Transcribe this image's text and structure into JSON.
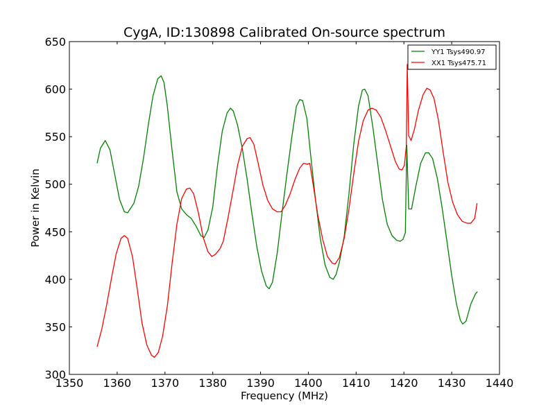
{
  "chart_data": {
    "type": "line",
    "title": "CygA, ID:130898 Calibrated On-source spectrum",
    "xlabel": "Frequency (MHz)",
    "ylabel": "Power in Kelvin",
    "xlim": [
      1350,
      1440
    ],
    "ylim": [
      300,
      650
    ],
    "xticks": [
      1350,
      1360,
      1370,
      1380,
      1390,
      1400,
      1410,
      1420,
      1430,
      1440
    ],
    "yticks": [
      300,
      350,
      400,
      450,
      500,
      550,
      600,
      650
    ],
    "grid": false,
    "legend_position": "top-right",
    "series": [
      {
        "name": "YY1 Tsys490.97",
        "color": "#008000",
        "points": [
          [
            1355.8,
            522
          ],
          [
            1356.5,
            538
          ],
          [
            1357.5,
            546
          ],
          [
            1358.5,
            536
          ],
          [
            1359.5,
            510
          ],
          [
            1360.5,
            484
          ],
          [
            1361.5,
            471
          ],
          [
            1362.2,
            470
          ],
          [
            1363.5,
            480
          ],
          [
            1364.5,
            498
          ],
          [
            1365.5,
            527
          ],
          [
            1366.5,
            562
          ],
          [
            1367.5,
            593
          ],
          [
            1368.5,
            611
          ],
          [
            1369.2,
            614
          ],
          [
            1369.8,
            607
          ],
          [
            1370.5,
            582
          ],
          [
            1371.5,
            535
          ],
          [
            1372.5,
            492
          ],
          [
            1373.5,
            474
          ],
          [
            1374.5,
            468
          ],
          [
            1375.5,
            464
          ],
          [
            1376.5,
            456
          ],
          [
            1377.5,
            446
          ],
          [
            1378.2,
            444
          ],
          [
            1379.0,
            452
          ],
          [
            1380.0,
            476
          ],
          [
            1381.0,
            520
          ],
          [
            1382.0,
            556
          ],
          [
            1383.0,
            575
          ],
          [
            1383.7,
            580
          ],
          [
            1384.3,
            577
          ],
          [
            1385.2,
            562
          ],
          [
            1386.2,
            537
          ],
          [
            1387.2,
            505
          ],
          [
            1388.2,
            469
          ],
          [
            1389.2,
            435
          ],
          [
            1390.2,
            409
          ],
          [
            1391.2,
            393
          ],
          [
            1391.8,
            390
          ],
          [
            1392.5,
            397
          ],
          [
            1393.5,
            428
          ],
          [
            1394.5,
            470
          ],
          [
            1395.5,
            510
          ],
          [
            1396.5,
            548
          ],
          [
            1397.5,
            582
          ],
          [
            1398.2,
            589
          ],
          [
            1398.8,
            588
          ],
          [
            1399.7,
            569
          ],
          [
            1400.5,
            530
          ],
          [
            1401.5,
            484
          ],
          [
            1402.5,
            443
          ],
          [
            1403.5,
            415
          ],
          [
            1404.5,
            402
          ],
          [
            1405.2,
            400
          ],
          [
            1405.8,
            405
          ],
          [
            1406.5,
            418
          ],
          [
            1407.5,
            445
          ],
          [
            1408.5,
            490
          ],
          [
            1409.5,
            542
          ],
          [
            1410.5,
            582
          ],
          [
            1411.3,
            599
          ],
          [
            1411.8,
            600
          ],
          [
            1412.5,
            593
          ],
          [
            1413.5,
            560
          ],
          [
            1414.5,
            522
          ],
          [
            1415.5,
            484
          ],
          [
            1416.5,
            458
          ],
          [
            1417.5,
            446
          ],
          [
            1418.5,
            441
          ],
          [
            1419.2,
            440
          ],
          [
            1419.8,
            442
          ],
          [
            1420.3,
            449
          ],
          [
            1420.6,
            541
          ],
          [
            1421.0,
            474
          ],
          [
            1421.6,
            474
          ],
          [
            1422.5,
            498
          ],
          [
            1423.5,
            522
          ],
          [
            1424.5,
            533
          ],
          [
            1425.2,
            533
          ],
          [
            1426.0,
            527
          ],
          [
            1427.0,
            506
          ],
          [
            1428.0,
            475
          ],
          [
            1429.0,
            440
          ],
          [
            1430.0,
            404
          ],
          [
            1431.0,
            374
          ],
          [
            1431.8,
            357
          ],
          [
            1432.3,
            353
          ],
          [
            1433.0,
            356
          ],
          [
            1434.0,
            374
          ],
          [
            1435.0,
            385
          ],
          [
            1435.4,
            387
          ]
        ]
      },
      {
        "name": "XX1 Tsys475.71",
        "color": "#ff0000",
        "points": [
          [
            1355.8,
            329
          ],
          [
            1356.8,
            348
          ],
          [
            1357.8,
            373
          ],
          [
            1358.8,
            401
          ],
          [
            1359.8,
            427
          ],
          [
            1360.8,
            443
          ],
          [
            1361.5,
            446
          ],
          [
            1362.2,
            443
          ],
          [
            1363.2,
            424
          ],
          [
            1364.2,
            390
          ],
          [
            1365.2,
            354
          ],
          [
            1366.2,
            331
          ],
          [
            1367.2,
            320
          ],
          [
            1367.8,
            318
          ],
          [
            1368.6,
            323
          ],
          [
            1369.5,
            340
          ],
          [
            1370.5,
            372
          ],
          [
            1371.5,
            417
          ],
          [
            1372.5,
            458
          ],
          [
            1373.5,
            485
          ],
          [
            1374.5,
            495
          ],
          [
            1375.2,
            496
          ],
          [
            1376.0,
            490
          ],
          [
            1377.0,
            470
          ],
          [
            1378.0,
            444
          ],
          [
            1379.0,
            429
          ],
          [
            1379.8,
            424
          ],
          [
            1380.5,
            426
          ],
          [
            1381.5,
            432
          ],
          [
            1382.2,
            440
          ],
          [
            1383.2,
            465
          ],
          [
            1384.2,
            492
          ],
          [
            1385.2,
            520
          ],
          [
            1386.2,
            540
          ],
          [
            1387.2,
            548
          ],
          [
            1387.8,
            549
          ],
          [
            1388.6,
            542
          ],
          [
            1389.5,
            522
          ],
          [
            1390.5,
            499
          ],
          [
            1391.5,
            483
          ],
          [
            1392.5,
            474
          ],
          [
            1393.5,
            471
          ],
          [
            1394.3,
            471
          ],
          [
            1395.2,
            478
          ],
          [
            1396.2,
            490
          ],
          [
            1397.2,
            505
          ],
          [
            1398.2,
            517
          ],
          [
            1399.0,
            522
          ],
          [
            1399.8,
            521
          ],
          [
            1400.3,
            522
          ],
          [
            1401.0,
            500
          ],
          [
            1402.0,
            467
          ],
          [
            1403.0,
            442
          ],
          [
            1404.0,
            424
          ],
          [
            1405.0,
            417
          ],
          [
            1405.6,
            416
          ],
          [
            1406.5,
            423
          ],
          [
            1407.5,
            443
          ],
          [
            1408.5,
            474
          ],
          [
            1409.5,
            511
          ],
          [
            1410.5,
            545
          ],
          [
            1411.5,
            567
          ],
          [
            1412.5,
            578
          ],
          [
            1413.3,
            580
          ],
          [
            1414.2,
            578
          ],
          [
            1415.2,
            570
          ],
          [
            1416.2,
            556
          ],
          [
            1417.2,
            540
          ],
          [
            1418.2,
            524
          ],
          [
            1419.0,
            516
          ],
          [
            1419.6,
            515
          ],
          [
            1420.1,
            520
          ],
          [
            1420.5,
            540
          ],
          [
            1420.7,
            626
          ],
          [
            1421.0,
            551
          ],
          [
            1421.5,
            546
          ],
          [
            1422.2,
            558
          ],
          [
            1423.0,
            577
          ],
          [
            1424.0,
            594
          ],
          [
            1424.8,
            601
          ],
          [
            1425.5,
            599
          ],
          [
            1426.3,
            590
          ],
          [
            1427.2,
            568
          ],
          [
            1428.2,
            534
          ],
          [
            1429.2,
            502
          ],
          [
            1430.2,
            481
          ],
          [
            1431.2,
            468
          ],
          [
            1432.2,
            461
          ],
          [
            1433.2,
            459
          ],
          [
            1434.0,
            459
          ],
          [
            1434.8,
            464
          ],
          [
            1435.3,
            480
          ]
        ]
      }
    ]
  }
}
